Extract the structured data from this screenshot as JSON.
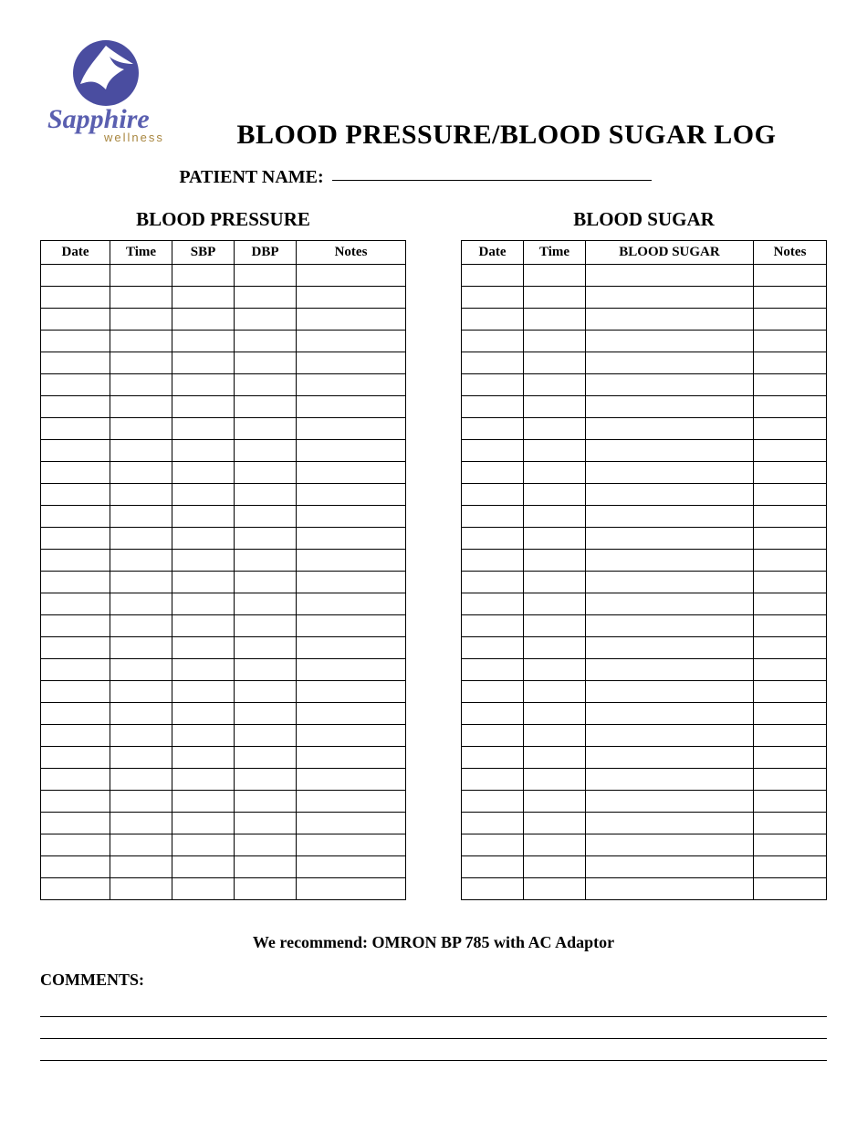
{
  "logo": {
    "brand_main": "Sapphire",
    "brand_sub": "wellness",
    "circle_color": "#4a4da0",
    "text_main_color": "#5a5fb0",
    "text_sub_color": "#a8863f"
  },
  "main_title": "BLOOD PRESSURE/BLOOD SUGAR LOG",
  "patient_label": "PATIENT NAME:",
  "tables_row": {
    "bp": {
      "heading": "BLOOD PRESSURE",
      "columns": [
        {
          "label": "Date",
          "width": "19%"
        },
        {
          "label": "Time",
          "width": "17%"
        },
        {
          "label": "SBP",
          "width": "17%"
        },
        {
          "label": "DBP",
          "width": "17%"
        },
        {
          "label": "Notes",
          "width": "30%"
        }
      ],
      "row_count": 29
    },
    "bs": {
      "heading": "BLOOD SUGAR",
      "columns": [
        {
          "label": "Date",
          "width": "17%"
        },
        {
          "label": "Time",
          "width": "17%"
        },
        {
          "label": "BLOOD SUGAR",
          "width": "46%"
        },
        {
          "label": "Notes",
          "width": "20%"
        }
      ],
      "row_count": 29
    }
  },
  "recommend_text": "We recommend: OMRON BP 785 with AC Adaptor",
  "comments_label": "COMMENTS:",
  "comment_line_count": 3,
  "colors": {
    "page_bg": "#ffffff",
    "text": "#000000",
    "border": "#000000"
  },
  "typography": {
    "font_family": "Times New Roman",
    "main_title_pt": 30,
    "section_heading_pt": 21,
    "table_header_pt": 15,
    "label_pt": 20,
    "recommend_pt": 18
  }
}
